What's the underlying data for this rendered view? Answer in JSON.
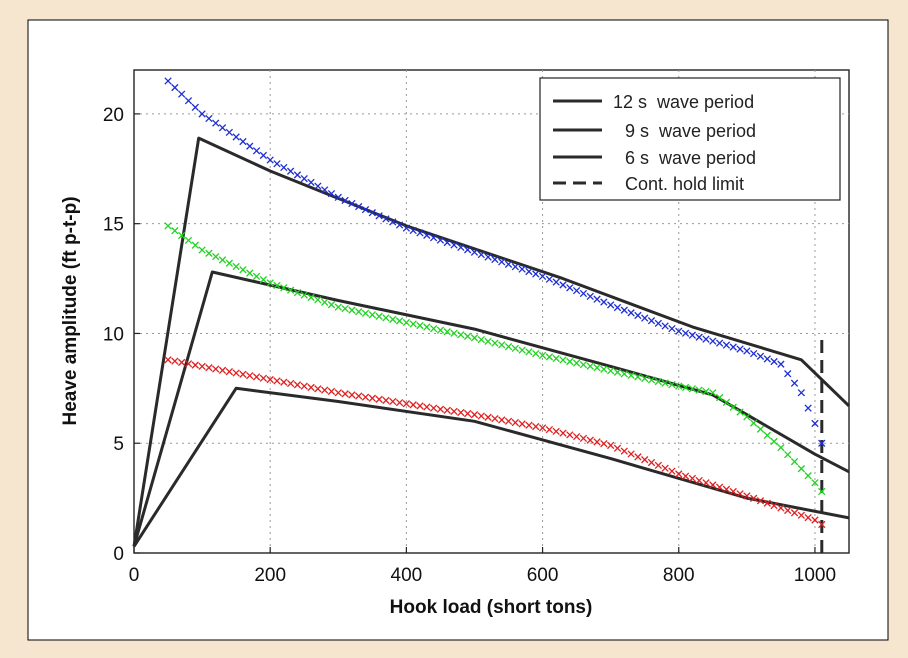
{
  "chart_data": {
    "type": "line",
    "xlabel": "Hook load (short tons)",
    "ylabel": "Heave amplitude (ft p-t-p)",
    "xlim": [
      0,
      1050
    ],
    "ylim": [
      0,
      22
    ],
    "x_ticks": [
      0,
      200,
      400,
      600,
      800,
      1000
    ],
    "y_ticks": [
      0,
      5,
      10,
      15,
      20
    ],
    "grid": true,
    "legend_position": "top-right",
    "legend": [
      {
        "label": "12 s  wave period",
        "style": "solid"
      },
      {
        "label": "9 s  wave period",
        "style": "solid"
      },
      {
        "label": "6 s  wave period",
        "style": "solid"
      },
      {
        "label": "Cont. hold limit",
        "style": "dashed"
      }
    ],
    "series": [
      {
        "name": "12 s  wave period",
        "style": "solid",
        "color": "#2a2a2a",
        "x": [
          0,
          95,
          200,
          400,
          630,
          820,
          980,
          1050
        ],
        "y": [
          0.3,
          18.9,
          17.4,
          14.9,
          12.5,
          10.3,
          8.8,
          6.7
        ]
      },
      {
        "name": "9 s  wave period",
        "style": "solid",
        "color": "#2a2a2a",
        "x": [
          0,
          115,
          300,
          500,
          700,
          850,
          1000,
          1050
        ],
        "y": [
          0.3,
          12.8,
          11.5,
          10.2,
          8.5,
          7.2,
          4.5,
          3.7
        ]
      },
      {
        "name": "6 s  wave period",
        "style": "solid",
        "color": "#2a2a2a",
        "x": [
          0,
          150,
          300,
          500,
          700,
          900,
          1050
        ],
        "y": [
          0.3,
          7.5,
          6.9,
          6.0,
          4.3,
          2.5,
          1.6
        ]
      },
      {
        "name": "Cont. hold limit",
        "style": "dashed",
        "color": "#2a2a2a",
        "x": [
          1010,
          1010
        ],
        "y": [
          0,
          9.8
        ]
      },
      {
        "style": "markers-x",
        "color": "#1f2fd0",
        "x": [
          50,
          100,
          200,
          300,
          400,
          500,
          600,
          700,
          800,
          900,
          950,
          980,
          1000,
          1010
        ],
        "y": [
          21.5,
          20.0,
          17.9,
          16.2,
          14.8,
          13.7,
          12.6,
          11.3,
          10.1,
          9.2,
          8.6,
          7.3,
          5.9,
          5.0
        ]
      },
      {
        "style": "markers-x",
        "color": "#22d122",
        "x": [
          50,
          100,
          200,
          300,
          400,
          500,
          600,
          700,
          800,
          850,
          900,
          950,
          1000,
          1010
        ],
        "y": [
          14.9,
          13.8,
          12.3,
          11.2,
          10.5,
          9.8,
          9.0,
          8.3,
          7.6,
          7.3,
          6.2,
          4.8,
          3.2,
          2.8
        ]
      },
      {
        "style": "markers-x",
        "color": "#e02020",
        "x": [
          50,
          100,
          200,
          300,
          400,
          500,
          600,
          700,
          800,
          900,
          1000,
          1010
        ],
        "y": [
          8.8,
          8.5,
          7.9,
          7.3,
          6.8,
          6.3,
          5.7,
          4.9,
          3.6,
          2.6,
          1.5,
          1.3
        ]
      }
    ]
  }
}
